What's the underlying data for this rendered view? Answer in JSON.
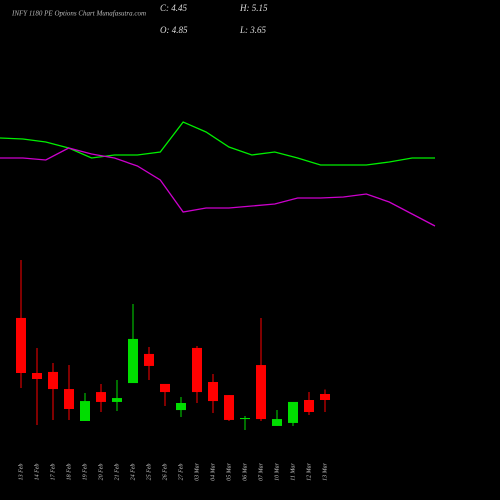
{
  "chart_data": [
    {
      "type": "candlestick",
      "title": "INFY 1180 PE Options Chart Munafasutra.com",
      "annotations": [
        "C: 4.45",
        "H: 5.15",
        "O: 4.85",
        "L: 3.65"
      ],
      "categories": [
        "13 Feb",
        "14 Feb",
        "17 Feb",
        "18 Feb",
        "19 Feb",
        "20 Feb",
        "21 Feb",
        "24 Feb",
        "25 Feb",
        "26 Feb",
        "27 Feb",
        "03 Mar",
        "04 Mar",
        "05 Mar",
        "06 Mar",
        "07 Mar",
        "10 Mar",
        "11 Mar",
        "12 Mar",
        "13 Mar"
      ],
      "open": [
        9.92,
        6.25,
        6.32,
        5.18,
        3.05,
        4.98,
        4.32,
        5.58,
        7.52,
        5.52,
        3.78,
        7.92,
        5.65,
        4.78,
        3.18,
        6.78,
        2.72,
        2.92,
        4.45,
        4.85
      ],
      "high": [
        13.78,
        7.92,
        6.92,
        6.78,
        4.92,
        5.52,
        5.78,
        10.85,
        7.98,
        5.52,
        4.65,
        8.05,
        6.18,
        4.78,
        3.38,
        9.92,
        3.78,
        4.32,
        4.98,
        5.15
      ],
      "low": [
        5.25,
        2.78,
        3.12,
        3.12,
        3.05,
        3.65,
        3.72,
        5.58,
        5.78,
        4.05,
        3.32,
        4.25,
        3.58,
        3.05,
        2.45,
        3.05,
        2.72,
        2.72,
        3.45,
        3.65
      ],
      "close": [
        6.25,
        5.85,
        5.18,
        3.85,
        4.38,
        4.32,
        4.58,
        8.52,
        6.72,
        4.98,
        4.25,
        4.98,
        4.38,
        3.12,
        3.25,
        3.18,
        3.18,
        4.32,
        3.65,
        4.45
      ],
      "ylim": [
        2,
        14.5
      ],
      "up_color": "#00dd00",
      "down_color": "#ff0000"
    },
    {
      "type": "line",
      "series": [
        {
          "color": "#00ee00",
          "values": [
            112,
            111,
            108,
            102,
            92,
            95,
            95,
            98,
            128,
            118,
            103,
            95,
            98,
            92,
            85,
            85,
            85,
            88,
            92,
            92
          ]
        },
        {
          "color": "#cc00cc",
          "values": [
            92,
            92,
            90,
            102,
            96,
            92,
            84,
            70,
            38,
            42,
            42,
            44,
            46,
            52,
            52,
            53,
            56,
            48,
            36,
            24
          ]
        }
      ],
      "ylim": [
        0,
        150
      ]
    }
  ]
}
